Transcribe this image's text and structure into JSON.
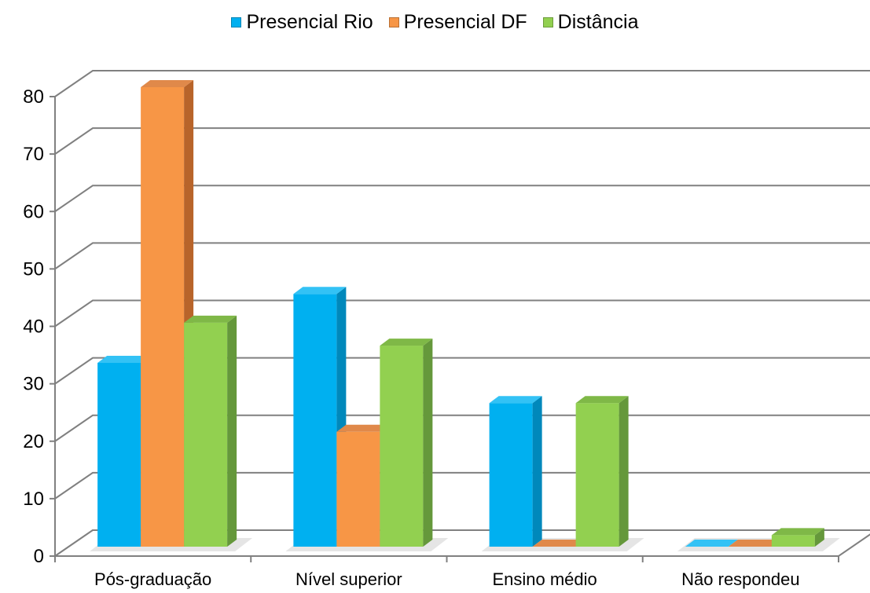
{
  "chart_data": {
    "type": "bar",
    "categories": [
      "Pós-graduação",
      "Nível superior",
      "Ensino médio",
      "Não respondeu"
    ],
    "series": [
      {
        "name": "Presencial Rio",
        "values": [
          32,
          44,
          25,
          0
        ],
        "color": "#00b0f0",
        "side_color": "#0088bb",
        "top_color": "#33c2f5"
      },
      {
        "name": "Presencial DF",
        "values": [
          80,
          20,
          0,
          0
        ],
        "color": "#f79646",
        "side_color": "#b8642a",
        "top_color": "#e0894a"
      },
      {
        "name": "Distância",
        "values": [
          39,
          35,
          25,
          2
        ],
        "color": "#92d050",
        "side_color": "#65983b",
        "top_color": "#7fb847"
      }
    ],
    "y_ticks": [
      "0",
      "10",
      "20",
      "30",
      "40",
      "50",
      "60",
      "70",
      "80"
    ],
    "ylim": [
      0,
      80
    ],
    "grid": true,
    "legend_position": "top",
    "title": "",
    "xlabel": "",
    "ylabel": ""
  }
}
